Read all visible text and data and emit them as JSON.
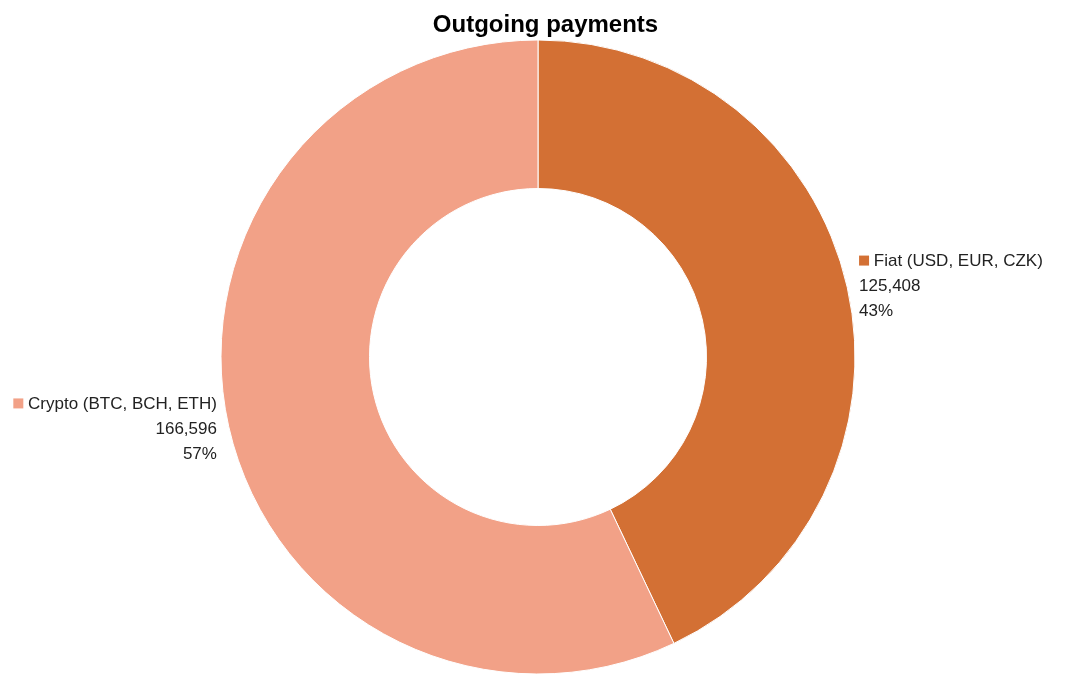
{
  "chart_data": {
    "type": "donut",
    "title": "Outgoing payments",
    "categories": [
      "Fiat (USD, EUR, CZK)",
      "Crypto (BTC, BCH, ETH)"
    ],
    "values": [
      125408,
      166596
    ],
    "colors": [
      "#d37034",
      "#f2a187"
    ],
    "value_labels": [
      "125,408\n43%",
      "166,596\n57%"
    ],
    "legend": "right"
  }
}
